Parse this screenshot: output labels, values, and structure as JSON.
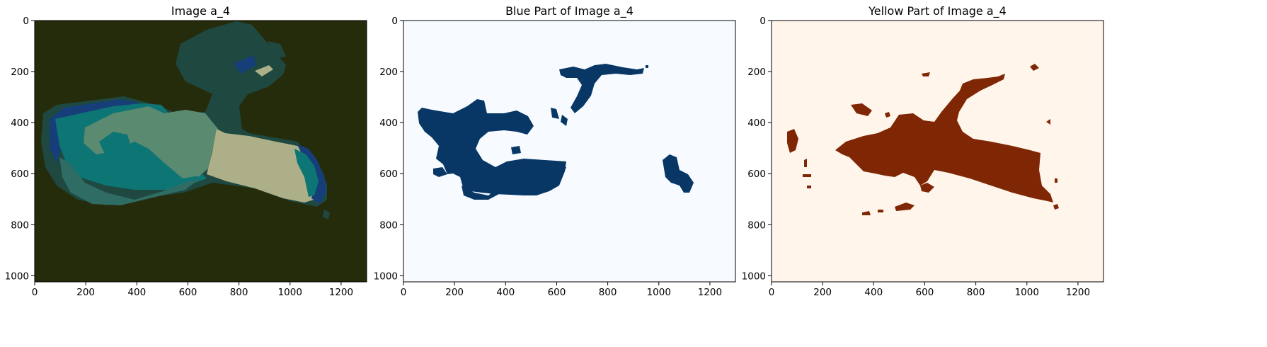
{
  "chart_data": [
    {
      "type": "image",
      "title": "Image a_4",
      "xlim": [
        0,
        1300
      ],
      "ylim": [
        1024,
        0
      ],
      "xticks": [
        0,
        200,
        400,
        600,
        800,
        1000,
        1200
      ],
      "yticks": [
        0,
        200,
        400,
        600,
        800,
        1000
      ],
      "colors": {
        "background": "#252c0c",
        "dark_teal": "#1f4840",
        "teal": "#2f6c63",
        "light_teal": "#0e7575",
        "green_gray": "#5a8a70",
        "blue": "#163f7a",
        "khaki": "#acaf88"
      }
    },
    {
      "type": "image",
      "title": "Blue Part of Image a_4",
      "xlim": [
        0,
        1300
      ],
      "ylim": [
        1024,
        0
      ],
      "xticks": [
        0,
        200,
        400,
        600,
        800,
        1000,
        1200
      ],
      "yticks": [
        0,
        200,
        400,
        600,
        800,
        1000
      ],
      "colormap": "Blues",
      "colors": {
        "background": "#f7fbff",
        "mask": "#083766"
      }
    },
    {
      "type": "image",
      "title": "Yellow Part of Image a_4",
      "xlim": [
        0,
        1300
      ],
      "ylim": [
        1024,
        0
      ],
      "xticks": [
        0,
        200,
        400,
        600,
        800,
        1000,
        1200
      ],
      "yticks": [
        0,
        200,
        400,
        600,
        800,
        1000
      ],
      "colormap": "Oranges",
      "colors": {
        "background": "#fff5eb",
        "mask": "#7f2704"
      }
    }
  ]
}
